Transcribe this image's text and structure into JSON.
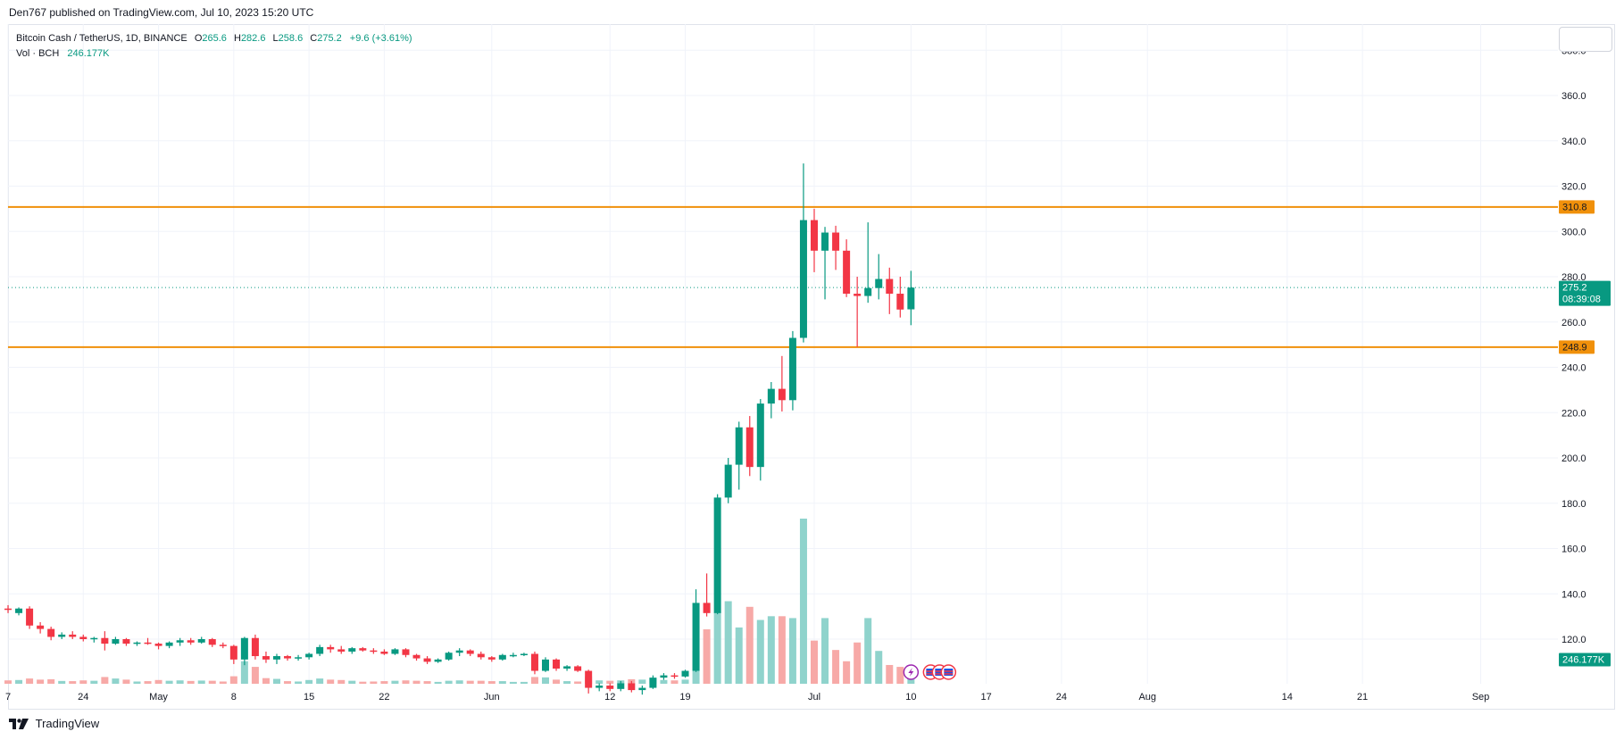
{
  "header": {
    "published": "Den767 published on TradingView.com, Jul 10, 2023 15:20 UTC"
  },
  "legend": {
    "symbol": "Bitcoin Cash / TetherUS, 1D, BINANCE",
    "open_label": "O",
    "open": "265.6",
    "high_label": "H",
    "high": "282.6",
    "low_label": "L",
    "low": "258.6",
    "close_label": "C",
    "close": "275.2",
    "change": "+9.6 (+3.61%)",
    "volume_label": "Vol · BCH",
    "volume_value": "246.177K"
  },
  "footer": {
    "brand": "TradingView"
  },
  "colors": {
    "up": "#089981",
    "down": "#f23645",
    "vol_up": "#8fd3cc",
    "vol_down": "#f7a9a7",
    "level": "#f0900a",
    "grid": "#f0f3fa"
  },
  "chart_data": {
    "type": "candlestick",
    "symbol": "Bitcoin Cash / TetherUS",
    "interval": "1D",
    "exchange": "BINANCE",
    "y_ticks": [
      120.0,
      140.0,
      160.0,
      180.0,
      200.0,
      220.0,
      240.0,
      260.0,
      280.0,
      300.0,
      320.0,
      340.0,
      360.0,
      380.0
    ],
    "x_ticks": [
      {
        "label": "7",
        "date": "2023-04-17"
      },
      {
        "label": "24",
        "date": "2023-04-24"
      },
      {
        "label": "May",
        "date": "2023-05-01"
      },
      {
        "label": "8",
        "date": "2023-05-08"
      },
      {
        "label": "15",
        "date": "2023-05-15"
      },
      {
        "label": "22",
        "date": "2023-05-22"
      },
      {
        "label": "Jun",
        "date": "2023-06-01"
      },
      {
        "label": "12",
        "date": "2023-06-12"
      },
      {
        "label": "19",
        "date": "2023-06-19"
      },
      {
        "label": "Jul",
        "date": "2023-07-01"
      },
      {
        "label": "10",
        "date": "2023-07-10"
      },
      {
        "label": "17",
        "date": "2023-07-17"
      },
      {
        "label": "24",
        "date": "2023-07-24"
      },
      {
        "label": "Aug",
        "date": "2023-08-01"
      },
      {
        "label": "14",
        "date": "2023-08-14"
      },
      {
        "label": "21",
        "date": "2023-08-21"
      },
      {
        "label": "Sep",
        "date": "2023-09-01"
      }
    ],
    "horizontal_levels": [
      {
        "value": 310.8,
        "label": "310.8"
      },
      {
        "value": 248.9,
        "label": "248.9"
      }
    ],
    "last_price": {
      "value": 275.2,
      "label": "275.2",
      "countdown": "08:39:08"
    },
    "volume_tag": {
      "label": "246.177K"
    },
    "candles": [
      {
        "date": "2023-04-17",
        "o": 133.5,
        "h": 135.0,
        "l": 131.5,
        "c": 133.0,
        "v": 18
      },
      {
        "date": "2023-04-18",
        "o": 131.5,
        "h": 134.0,
        "l": 130.5,
        "c": 133.5,
        "v": 20
      },
      {
        "date": "2023-04-19",
        "o": 133.5,
        "h": 134.5,
        "l": 124.5,
        "c": 126.0,
        "v": 28
      },
      {
        "date": "2023-04-20",
        "o": 126.0,
        "h": 127.5,
        "l": 122.5,
        "c": 124.5,
        "v": 22
      },
      {
        "date": "2023-04-21",
        "o": 124.5,
        "h": 125.5,
        "l": 119.5,
        "c": 121.0,
        "v": 24
      },
      {
        "date": "2023-04-22",
        "o": 121.0,
        "h": 123.0,
        "l": 120.0,
        "c": 122.0,
        "v": 15
      },
      {
        "date": "2023-04-23",
        "o": 122.0,
        "h": 123.5,
        "l": 120.0,
        "c": 121.0,
        "v": 14
      },
      {
        "date": "2023-04-24",
        "o": 121.0,
        "h": 122.0,
        "l": 119.0,
        "c": 120.0,
        "v": 18
      },
      {
        "date": "2023-04-25",
        "o": 120.0,
        "h": 121.0,
        "l": 118.5,
        "c": 120.5,
        "v": 16
      },
      {
        "date": "2023-04-26",
        "o": 120.5,
        "h": 123.5,
        "l": 115.0,
        "c": 118.0,
        "v": 36
      },
      {
        "date": "2023-04-27",
        "o": 118.0,
        "h": 121.0,
        "l": 117.5,
        "c": 120.0,
        "v": 28
      },
      {
        "date": "2023-04-28",
        "o": 120.0,
        "h": 120.5,
        "l": 117.0,
        "c": 118.0,
        "v": 22
      },
      {
        "date": "2023-04-29",
        "o": 118.0,
        "h": 119.0,
        "l": 117.0,
        "c": 118.5,
        "v": 12
      },
      {
        "date": "2023-04-30",
        "o": 118.5,
        "h": 120.5,
        "l": 117.5,
        "c": 118.0,
        "v": 14
      },
      {
        "date": "2023-05-01",
        "o": 118.0,
        "h": 118.5,
        "l": 115.5,
        "c": 117.0,
        "v": 20
      },
      {
        "date": "2023-05-02",
        "o": 117.0,
        "h": 119.0,
        "l": 116.0,
        "c": 118.5,
        "v": 16
      },
      {
        "date": "2023-05-03",
        "o": 118.5,
        "h": 120.5,
        "l": 117.0,
        "c": 119.5,
        "v": 18
      },
      {
        "date": "2023-05-04",
        "o": 119.5,
        "h": 120.5,
        "l": 117.5,
        "c": 118.5,
        "v": 15
      },
      {
        "date": "2023-05-05",
        "o": 118.5,
        "h": 121.0,
        "l": 118.0,
        "c": 120.0,
        "v": 17
      },
      {
        "date": "2023-05-06",
        "o": 120.0,
        "h": 120.5,
        "l": 116.5,
        "c": 117.5,
        "v": 16
      },
      {
        "date": "2023-05-07",
        "o": 117.5,
        "h": 118.5,
        "l": 116.0,
        "c": 117.0,
        "v": 12
      },
      {
        "date": "2023-05-08",
        "o": 117.0,
        "h": 117.5,
        "l": 109.0,
        "c": 111.0,
        "v": 40
      },
      {
        "date": "2023-05-09",
        "o": 111.0,
        "h": 121.0,
        "l": 108.5,
        "c": 120.5,
        "v": 120
      },
      {
        "date": "2023-05-10",
        "o": 120.5,
        "h": 122.0,
        "l": 111.0,
        "c": 112.5,
        "v": 90
      },
      {
        "date": "2023-05-11",
        "o": 112.5,
        "h": 114.5,
        "l": 109.5,
        "c": 111.0,
        "v": 30
      },
      {
        "date": "2023-05-12",
        "o": 111.0,
        "h": 113.5,
        "l": 109.0,
        "c": 112.5,
        "v": 26
      },
      {
        "date": "2023-05-13",
        "o": 112.5,
        "h": 113.0,
        "l": 110.5,
        "c": 111.5,
        "v": 14
      },
      {
        "date": "2023-05-14",
        "o": 111.5,
        "h": 113.0,
        "l": 110.5,
        "c": 112.0,
        "v": 12
      },
      {
        "date": "2023-05-15",
        "o": 112.0,
        "h": 114.0,
        "l": 111.0,
        "c": 113.5,
        "v": 20
      },
      {
        "date": "2023-05-16",
        "o": 113.5,
        "h": 117.5,
        "l": 112.5,
        "c": 116.5,
        "v": 28
      },
      {
        "date": "2023-05-17",
        "o": 116.5,
        "h": 117.5,
        "l": 114.0,
        "c": 115.5,
        "v": 22
      },
      {
        "date": "2023-05-18",
        "o": 115.5,
        "h": 117.0,
        "l": 113.5,
        "c": 114.5,
        "v": 20
      },
      {
        "date": "2023-05-19",
        "o": 114.5,
        "h": 116.5,
        "l": 113.5,
        "c": 116.0,
        "v": 16
      },
      {
        "date": "2023-05-20",
        "o": 116.0,
        "h": 116.5,
        "l": 114.5,
        "c": 115.0,
        "v": 11
      },
      {
        "date": "2023-05-21",
        "o": 115.0,
        "h": 116.0,
        "l": 113.5,
        "c": 114.5,
        "v": 12
      },
      {
        "date": "2023-05-22",
        "o": 114.5,
        "h": 115.5,
        "l": 113.0,
        "c": 113.5,
        "v": 14
      },
      {
        "date": "2023-05-23",
        "o": 113.5,
        "h": 116.0,
        "l": 113.0,
        "c": 115.5,
        "v": 16
      },
      {
        "date": "2023-05-24",
        "o": 115.5,
        "h": 116.0,
        "l": 112.0,
        "c": 113.0,
        "v": 18
      },
      {
        "date": "2023-05-25",
        "o": 113.0,
        "h": 113.5,
        "l": 110.5,
        "c": 111.5,
        "v": 16
      },
      {
        "date": "2023-05-26",
        "o": 111.5,
        "h": 112.5,
        "l": 109.0,
        "c": 110.0,
        "v": 14
      },
      {
        "date": "2023-05-27",
        "o": 110.0,
        "h": 111.5,
        "l": 109.5,
        "c": 111.0,
        "v": 10
      },
      {
        "date": "2023-05-28",
        "o": 111.0,
        "h": 114.5,
        "l": 110.5,
        "c": 114.0,
        "v": 16
      },
      {
        "date": "2023-05-29",
        "o": 114.0,
        "h": 116.0,
        "l": 112.5,
        "c": 115.0,
        "v": 18
      },
      {
        "date": "2023-05-30",
        "o": 115.0,
        "h": 115.5,
        "l": 112.5,
        "c": 113.5,
        "v": 16
      },
      {
        "date": "2023-05-31",
        "o": 113.5,
        "h": 114.5,
        "l": 111.0,
        "c": 112.0,
        "v": 16
      },
      {
        "date": "2023-06-01",
        "o": 112.0,
        "h": 112.5,
        "l": 110.0,
        "c": 111.0,
        "v": 14
      },
      {
        "date": "2023-06-02",
        "o": 111.0,
        "h": 113.5,
        "l": 110.5,
        "c": 113.0,
        "v": 14
      },
      {
        "date": "2023-06-03",
        "o": 113.0,
        "h": 114.0,
        "l": 112.0,
        "c": 113.0,
        "v": 10
      },
      {
        "date": "2023-06-04",
        "o": 113.0,
        "h": 114.0,
        "l": 112.5,
        "c": 113.5,
        "v": 10
      },
      {
        "date": "2023-06-05",
        "o": 113.5,
        "h": 114.5,
        "l": 104.5,
        "c": 106.0,
        "v": 36
      },
      {
        "date": "2023-06-06",
        "o": 106.0,
        "h": 112.0,
        "l": 105.5,
        "c": 111.0,
        "v": 34
      },
      {
        "date": "2023-06-07",
        "o": 111.0,
        "h": 111.5,
        "l": 106.0,
        "c": 107.0,
        "v": 22
      },
      {
        "date": "2023-06-08",
        "o": 107.0,
        "h": 108.5,
        "l": 106.0,
        "c": 108.0,
        "v": 14
      },
      {
        "date": "2023-06-09",
        "o": 108.0,
        "h": 108.5,
        "l": 105.5,
        "c": 106.0,
        "v": 12
      },
      {
        "date": "2023-06-10",
        "o": 106.0,
        "h": 106.5,
        "l": 96.0,
        "c": 98.5,
        "v": 40
      },
      {
        "date": "2023-06-11",
        "o": 98.5,
        "h": 100.5,
        "l": 97.0,
        "c": 99.5,
        "v": 18
      },
      {
        "date": "2023-06-12",
        "o": 99.5,
        "h": 100.5,
        "l": 97.0,
        "c": 98.0,
        "v": 16
      },
      {
        "date": "2023-06-13",
        "o": 98.0,
        "h": 101.5,
        "l": 97.0,
        "c": 100.5,
        "v": 18
      },
      {
        "date": "2023-06-14",
        "o": 100.5,
        "h": 101.5,
        "l": 96.5,
        "c": 97.5,
        "v": 24
      },
      {
        "date": "2023-06-15",
        "o": 97.5,
        "h": 99.5,
        "l": 95.5,
        "c": 98.5,
        "v": 22
      },
      {
        "date": "2023-06-16",
        "o": 98.5,
        "h": 104.0,
        "l": 98.0,
        "c": 103.0,
        "v": 30
      },
      {
        "date": "2023-06-17",
        "o": 103.0,
        "h": 105.0,
        "l": 102.0,
        "c": 104.0,
        "v": 20
      },
      {
        "date": "2023-06-18",
        "o": 104.0,
        "h": 105.0,
        "l": 102.5,
        "c": 103.5,
        "v": 18
      },
      {
        "date": "2023-06-19",
        "o": 103.5,
        "h": 106.5,
        "l": 103.0,
        "c": 106.0,
        "v": 22
      },
      {
        "date": "2023-06-20",
        "o": 106.0,
        "h": 142.0,
        "l": 105.5,
        "c": 136.0,
        "v": 175
      },
      {
        "date": "2023-06-21",
        "o": 136.0,
        "h": 149.0,
        "l": 130.0,
        "c": 131.5,
        "v": 290
      },
      {
        "date": "2023-06-22",
        "o": 131.5,
        "h": 184.0,
        "l": 131.0,
        "c": 182.5,
        "v": 380
      },
      {
        "date": "2023-06-23",
        "o": 182.5,
        "h": 200.0,
        "l": 180.0,
        "c": 197.0,
        "v": 440
      },
      {
        "date": "2023-06-24",
        "o": 197.0,
        "h": 216.0,
        "l": 186.0,
        "c": 213.5,
        "v": 300
      },
      {
        "date": "2023-06-25",
        "o": 213.5,
        "h": 218.5,
        "l": 192.0,
        "c": 196.0,
        "v": 410
      },
      {
        "date": "2023-06-26",
        "o": 196.0,
        "h": 226.0,
        "l": 190.0,
        "c": 224.0,
        "v": 340
      },
      {
        "date": "2023-06-27",
        "o": 224.0,
        "h": 233.5,
        "l": 217.5,
        "c": 230.5,
        "v": 360
      },
      {
        "date": "2023-06-28",
        "o": 230.5,
        "h": 245.0,
        "l": 220.5,
        "c": 225.5,
        "v": 360
      },
      {
        "date": "2023-06-29",
        "o": 225.5,
        "h": 256.0,
        "l": 221.0,
        "c": 253.0,
        "v": 350
      },
      {
        "date": "2023-06-30",
        "o": 253.0,
        "h": 330.0,
        "l": 251.0,
        "c": 305.0,
        "v": 880
      },
      {
        "date": "2023-07-01",
        "o": 305.0,
        "h": 310.0,
        "l": 282.0,
        "c": 291.5,
        "v": 230
      },
      {
        "date": "2023-07-02",
        "o": 291.5,
        "h": 302.0,
        "l": 270.0,
        "c": 299.5,
        "v": 350
      },
      {
        "date": "2023-07-03",
        "o": 299.5,
        "h": 302.5,
        "l": 283.0,
        "c": 291.5,
        "v": 180
      },
      {
        "date": "2023-07-04",
        "o": 291.5,
        "h": 296.5,
        "l": 271.0,
        "c": 272.5,
        "v": 120
      },
      {
        "date": "2023-07-05",
        "o": 272.5,
        "h": 280.0,
        "l": 249.0,
        "c": 271.5,
        "v": 220
      },
      {
        "date": "2023-07-06",
        "o": 271.5,
        "h": 304.0,
        "l": 268.5,
        "c": 275.0,
        "v": 350
      },
      {
        "date": "2023-07-07",
        "o": 275.0,
        "h": 290.0,
        "l": 270.0,
        "c": 279.0,
        "v": 175
      },
      {
        "date": "2023-07-08",
        "o": 279.0,
        "h": 284.0,
        "l": 263.5,
        "c": 272.5,
        "v": 100
      },
      {
        "date": "2023-07-09",
        "o": 272.5,
        "h": 280.0,
        "l": 262.0,
        "c": 265.5,
        "v": 90
      },
      {
        "date": "2023-07-10",
        "o": 265.6,
        "h": 282.6,
        "l": 258.6,
        "c": 275.2,
        "v": 40
      }
    ]
  }
}
